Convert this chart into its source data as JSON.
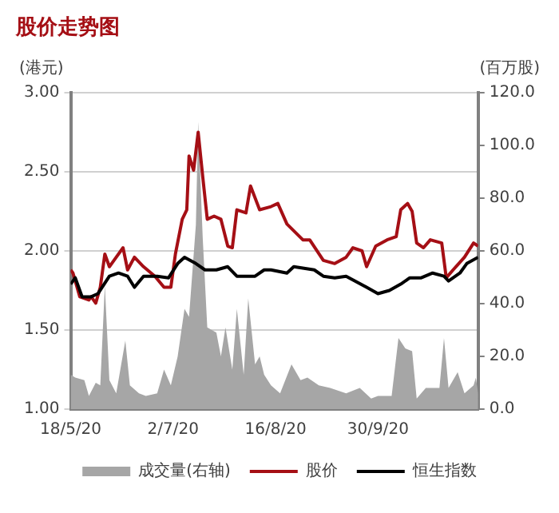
{
  "chart_data": {
    "type": "line",
    "title": "股价走势图",
    "ylabel": "(港元)",
    "y2label": "(百万股)",
    "xlim": [
      "2020-05-18",
      "2020-11-13"
    ],
    "xticks": [
      {
        "value": "2020-05-18",
        "label": "18/5/20"
      },
      {
        "value": "2020-07-02",
        "label": "2/7/20"
      },
      {
        "value": "2020-08-16",
        "label": "16/8/20"
      },
      {
        "value": "2020-09-30",
        "label": "30/9/20"
      }
    ],
    "ylim": [
      1,
      3
    ],
    "yticks": [
      {
        "value": 1,
        "label": "1.00"
      },
      {
        "value": 1.5,
        "label": "1.50"
      },
      {
        "value": 2,
        "label": "2.00"
      },
      {
        "value": 2.5,
        "label": "2.50"
      },
      {
        "value": 3,
        "label": "3.00"
      }
    ],
    "y2lim": [
      0,
      120
    ],
    "y2ticks": [
      {
        "value": 0,
        "label": "0.0"
      },
      {
        "value": 20,
        "label": "20.0"
      },
      {
        "value": 40,
        "label": "40.0"
      },
      {
        "value": 60,
        "label": "60.0"
      },
      {
        "value": 80,
        "label": "80.0"
      },
      {
        "value": 100,
        "label": "100.0"
      },
      {
        "value": 120,
        "label": "120.0"
      }
    ],
    "grid": "y",
    "legend": "bottom",
    "series": [
      {
        "name": "成交量(右轴)",
        "type": "area",
        "axis": "y2",
        "color": "#a6a6a6",
        "x": [
          "2020-05-18",
          "2020-05-20",
          "2020-05-24",
          "2020-05-26",
          "2020-05-29",
          "2020-05-31",
          "2020-06-02",
          "2020-06-04",
          "2020-06-07",
          "2020-06-11",
          "2020-06-13",
          "2020-06-17",
          "2020-06-20",
          "2020-06-25",
          "2020-06-28",
          "2020-07-01",
          "2020-07-04",
          "2020-07-07",
          "2020-07-09",
          "2020-07-12",
          "2020-07-13",
          "2020-07-15",
          "2020-07-17",
          "2020-07-21",
          "2020-07-23",
          "2020-07-25",
          "2020-07-28",
          "2020-07-30",
          "2020-08-02",
          "2020-08-04",
          "2020-08-07",
          "2020-08-09",
          "2020-08-11",
          "2020-08-14",
          "2020-08-18",
          "2020-08-23",
          "2020-08-27",
          "2020-08-30",
          "2020-09-04",
          "2020-09-09",
          "2020-09-16",
          "2020-09-22",
          "2020-09-27",
          "2020-09-30",
          "2020-10-06",
          "2020-10-09",
          "2020-10-12",
          "2020-10-15",
          "2020-10-17",
          "2020-10-21",
          "2020-10-27",
          "2020-10-29",
          "2020-10-31",
          "2020-11-04",
          "2020-11-07",
          "2020-11-11",
          "2020-11-12",
          "2020-11-13"
        ],
        "values": [
          13,
          12,
          11,
          5,
          10,
          9,
          47,
          11,
          6,
          26,
          9,
          6,
          5,
          6,
          15,
          9,
          20,
          38,
          35,
          70,
          109,
          65,
          31,
          29,
          20,
          31,
          15,
          38,
          13,
          42,
          17,
          20,
          13,
          9,
          6,
          17,
          11,
          12,
          9,
          8,
          6,
          8,
          4,
          5,
          5,
          27,
          23,
          22,
          4,
          8,
          8,
          27,
          8,
          14,
          6,
          9,
          12,
          6
        ]
      },
      {
        "name": "股价",
        "type": "line",
        "color": "#a50f15",
        "x": [
          "2020-05-18",
          "2020-05-19",
          "2020-05-22",
          "2020-05-26",
          "2020-05-27",
          "2020-05-29",
          "2020-05-31",
          "2020-06-02",
          "2020-06-04",
          "2020-06-06",
          "2020-06-10",
          "2020-06-12",
          "2020-06-15",
          "2020-06-19",
          "2020-06-24",
          "2020-06-28",
          "2020-07-01",
          "2020-07-03",
          "2020-07-06",
          "2020-07-08",
          "2020-07-09",
          "2020-07-11",
          "2020-07-13",
          "2020-07-15",
          "2020-07-17",
          "2020-07-20",
          "2020-07-23",
          "2020-07-26",
          "2020-07-28",
          "2020-07-30",
          "2020-08-03",
          "2020-08-05",
          "2020-08-09",
          "2020-08-14",
          "2020-08-17",
          "2020-08-21",
          "2020-08-28",
          "2020-08-31",
          "2020-09-06",
          "2020-09-11",
          "2020-09-16",
          "2020-09-19",
          "2020-09-23",
          "2020-09-25",
          "2020-09-29",
          "2020-10-04",
          "2020-10-08",
          "2020-10-10",
          "2020-10-13",
          "2020-10-15",
          "2020-10-17",
          "2020-10-20",
          "2020-10-23",
          "2020-10-28",
          "2020-10-30",
          "2020-11-02",
          "2020-11-07",
          "2020-11-11",
          "2020-11-13"
        ],
        "values": [
          1.88,
          1.86,
          1.71,
          1.69,
          1.71,
          1.67,
          1.77,
          1.98,
          1.9,
          1.94,
          2.02,
          1.88,
          1.96,
          1.9,
          1.84,
          1.77,
          1.77,
          1.98,
          2.2,
          2.26,
          2.6,
          2.51,
          2.75,
          2.47,
          2.2,
          2.22,
          2.2,
          2.03,
          2.02,
          2.26,
          2.24,
          2.41,
          2.26,
          2.28,
          2.3,
          2.17,
          2.07,
          2.07,
          1.94,
          1.92,
          1.96,
          2.02,
          2,
          1.9,
          2.03,
          2.07,
          2.09,
          2.26,
          2.3,
          2.25,
          2.05,
          2.02,
          2.07,
          2.05,
          1.83,
          1.88,
          1.96,
          2.05,
          2.03
        ]
      },
      {
        "name": "恒生指数",
        "type": "line",
        "color": "#000000",
        "x": [
          "2020-05-18",
          "2020-05-20",
          "2020-05-23",
          "2020-05-27",
          "2020-05-30",
          "2020-06-04",
          "2020-06-08",
          "2020-06-12",
          "2020-06-15",
          "2020-06-19",
          "2020-06-25",
          "2020-06-30",
          "2020-07-04",
          "2020-07-07",
          "2020-07-12",
          "2020-07-16",
          "2020-07-21",
          "2020-07-26",
          "2020-07-30",
          "2020-08-07",
          "2020-08-11",
          "2020-08-14",
          "2020-08-21",
          "2020-08-24",
          "2020-09-02",
          "2020-09-06",
          "2020-09-11",
          "2020-09-16",
          "2020-09-25",
          "2020-09-30",
          "2020-10-05",
          "2020-10-10",
          "2020-10-14",
          "2020-10-19",
          "2020-10-24",
          "2020-10-29",
          "2020-10-31",
          "2020-11-05",
          "2020-11-08",
          "2020-11-13"
        ],
        "values": [
          1.79,
          1.83,
          1.71,
          1.71,
          1.73,
          1.84,
          1.86,
          1.84,
          1.77,
          1.84,
          1.84,
          1.83,
          1.92,
          1.96,
          1.92,
          1.88,
          1.88,
          1.9,
          1.84,
          1.84,
          1.88,
          1.88,
          1.86,
          1.9,
          1.88,
          1.84,
          1.83,
          1.84,
          1.77,
          1.73,
          1.75,
          1.79,
          1.83,
          1.83,
          1.86,
          1.84,
          1.81,
          1.86,
          1.92,
          1.96
        ]
      }
    ]
  }
}
